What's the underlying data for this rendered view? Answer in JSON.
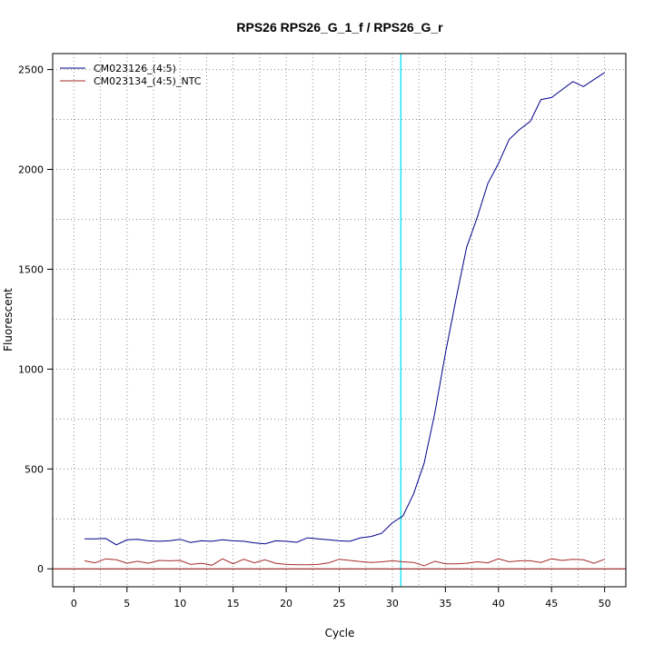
{
  "chart_data": {
    "type": "line",
    "title": "RPS26  RPS26_G_1_f / RPS26_G_r",
    "xlabel": "Cycle",
    "ylabel": "Fluorescent",
    "xlim": [
      -2,
      52
    ],
    "ylim": [
      -90,
      2580
    ],
    "xticks": [
      0,
      5,
      10,
      15,
      20,
      25,
      30,
      35,
      40,
      45,
      50
    ],
    "yticks": [
      0,
      500,
      1000,
      1500,
      2000,
      2500
    ],
    "grid": true,
    "legend_position": "top-left",
    "threshold_cycle": 30.8,
    "threshold_color": "#00e5ee",
    "baseline_color": "#8b0000",
    "series": [
      {
        "name": "CM023126_(4:5)",
        "color": "#00008b",
        "x": [
          1,
          2,
          3,
          4,
          5,
          6,
          7,
          8,
          9,
          10,
          11,
          12,
          13,
          14,
          15,
          16,
          17,
          18,
          19,
          20,
          21,
          22,
          23,
          24,
          25,
          26,
          27,
          28,
          29,
          30,
          31,
          32,
          33,
          34,
          35,
          36,
          37,
          38,
          39,
          40,
          41,
          42,
          43,
          44,
          45,
          46,
          47,
          48,
          49,
          50
        ],
        "y": [
          150,
          150,
          152,
          120,
          145,
          148,
          140,
          138,
          140,
          148,
          132,
          140,
          138,
          145,
          140,
          138,
          130,
          125,
          140,
          138,
          133,
          155,
          150,
          145,
          140,
          138,
          155,
          162,
          178,
          230,
          265,
          375,
          530,
          780,
          1080,
          1350,
          1610,
          1760,
          1930,
          2030,
          2150,
          2200,
          2240,
          2350,
          2360,
          2400,
          2440,
          2415,
          2450,
          2485
        ]
      },
      {
        "name": "CM023134_(4:5)_NTC",
        "color": "#a52a2a",
        "x": [
          1,
          2,
          3,
          4,
          5,
          6,
          7,
          8,
          9,
          10,
          11,
          12,
          13,
          14,
          15,
          16,
          17,
          18,
          19,
          20,
          21,
          22,
          23,
          24,
          25,
          26,
          27,
          28,
          29,
          30,
          31,
          32,
          33,
          34,
          35,
          36,
          37,
          38,
          39,
          40,
          41,
          42,
          43,
          44,
          45,
          46,
          47,
          48,
          49,
          50
        ],
        "y": [
          40,
          30,
          50,
          45,
          28,
          38,
          28,
          42,
          40,
          42,
          22,
          28,
          18,
          50,
          25,
          48,
          30,
          45,
          28,
          22,
          20,
          20,
          22,
          30,
          48,
          42,
          36,
          32,
          35,
          40,
          35,
          32,
          15,
          38,
          25,
          25,
          28,
          35,
          30,
          50,
          35,
          40,
          40,
          32,
          50,
          42,
          48,
          45,
          28,
          48
        ]
      }
    ]
  }
}
